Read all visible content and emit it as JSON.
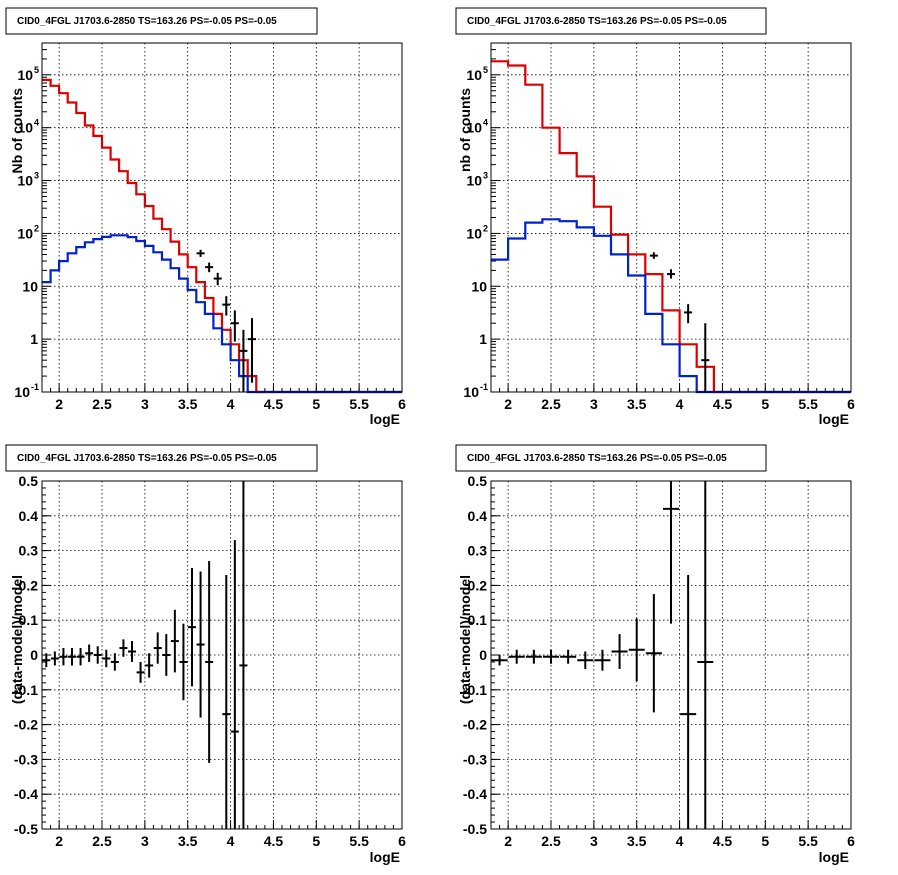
{
  "chart_data": [
    {
      "id": "counts-left",
      "type": "line",
      "title": "CID0_4FGL J1703.6-2850 TS=163.26 PS=-0.05 PS=-0.05",
      "xlabel": "logE",
      "ylabel": "Nb of counts",
      "xlim": [
        1.8,
        6.0
      ],
      "ylim": [
        0.1,
        400000
      ],
      "log_y": true,
      "grid": true,
      "x_ticks": [
        "2",
        "2.5",
        "3",
        "3.5",
        "4",
        "4.5",
        "5",
        "5.5",
        "6"
      ],
      "y_ticks": [
        {
          "value": 0.1,
          "base": "10",
          "exp": "-1"
        },
        {
          "value": 1,
          "label": "1"
        },
        {
          "value": 10,
          "label": "10"
        },
        {
          "value": 100,
          "base": "10",
          "exp": "2"
        },
        {
          "value": 1000,
          "base": "10",
          "exp": "3"
        },
        {
          "value": 10000,
          "base": "10",
          "exp": "4"
        },
        {
          "value": 100000,
          "base": "10",
          "exp": "5"
        }
      ],
      "bin_edges": [
        1.8,
        1.9,
        2.0,
        2.1,
        2.2,
        2.3,
        2.4,
        2.5,
        2.6,
        2.7,
        2.8,
        2.9,
        3.0,
        3.1,
        3.2,
        3.3,
        3.4,
        3.5,
        3.6,
        3.7,
        3.8,
        3.9,
        4.0,
        4.1,
        4.2,
        4.3,
        4.4,
        4.5,
        4.6,
        4.7,
        4.8,
        4.9,
        5.0,
        5.1,
        5.2,
        5.3,
        5.4,
        5.5,
        5.6,
        5.7,
        5.8,
        5.9,
        6.0
      ],
      "series": [
        {
          "color": "#dd0000",
          "values": [
            80000,
            62000,
            45000,
            30000,
            19000,
            11000,
            7000,
            4200,
            2500,
            1500,
            900,
            550,
            330,
            190,
            120,
            70,
            40,
            23,
            12,
            6,
            3,
            1.5,
            0.8,
            0.4,
            0.2,
            0.1,
            0.05,
            0.05,
            0.05,
            0.05,
            0.05,
            0.05,
            0.05,
            0.05,
            0.05,
            0.05,
            0.05,
            0.05,
            0.05,
            0.05,
            0.05,
            0.05
          ]
        },
        {
          "color": "#0022cc",
          "values": [
            12,
            20,
            30,
            42,
            55,
            68,
            78,
            86,
            92,
            92,
            85,
            72,
            58,
            44,
            32,
            22,
            14,
            8.5,
            5,
            3,
            1.6,
            0.8,
            0.4,
            0.2,
            0.1,
            0.1,
            0.1,
            0.1,
            0.1,
            0.1,
            0.1,
            0.1,
            0.1,
            0.1,
            0.1,
            0.1,
            0.1,
            0.1,
            0.1,
            0.1,
            0.1,
            0.1
          ]
        }
      ],
      "points": [
        {
          "x": 3.65,
          "y": 42,
          "ylo": 36,
          "yhi": 49
        },
        {
          "x": 3.75,
          "y": 23,
          "ylo": 18.5,
          "yhi": 28
        },
        {
          "x": 3.85,
          "y": 14,
          "ylo": 10.5,
          "yhi": 18
        },
        {
          "x": 3.95,
          "y": 4.5,
          "ylo": 2.8,
          "yhi": 6.5
        },
        {
          "x": 4.05,
          "y": 2,
          "ylo": 0.9,
          "yhi": 3.5
        },
        {
          "x": 4.15,
          "y": 0.6,
          "ylo": 0.1,
          "yhi": 1.5
        },
        {
          "x": 4.25,
          "y": 1.0,
          "ylo": 0.15,
          "yhi": 2.5
        }
      ]
    },
    {
      "id": "counts-right",
      "type": "line",
      "title": "CID0_4FGL J1703.6-2850 TS=163.26 PS=-0.05 PS=-0.05",
      "xlabel": "logE",
      "ylabel": "nb of counts",
      "xlim": [
        1.8,
        6.0
      ],
      "ylim": [
        0.1,
        400000
      ],
      "log_y": true,
      "grid": true,
      "x_ticks": [
        "2",
        "2.5",
        "3",
        "3.5",
        "4",
        "4.5",
        "5",
        "5.5",
        "6"
      ],
      "y_ticks": [
        {
          "value": 0.1,
          "base": "10",
          "exp": "-1"
        },
        {
          "value": 1,
          "label": "1"
        },
        {
          "value": 10,
          "label": "10"
        },
        {
          "value": 100,
          "base": "10",
          "exp": "2"
        },
        {
          "value": 1000,
          "base": "10",
          "exp": "3"
        },
        {
          "value": 10000,
          "base": "10",
          "exp": "4"
        },
        {
          "value": 100000,
          "base": "10",
          "exp": "5"
        }
      ],
      "bin_edges": [
        1.8,
        2.0,
        2.2,
        2.4,
        2.6,
        2.8,
        3.0,
        3.2,
        3.4,
        3.6,
        3.8,
        4.0,
        4.2,
        4.4,
        4.6,
        4.8,
        5.0,
        5.2,
        5.4,
        5.6,
        5.8,
        6.0
      ],
      "series": [
        {
          "color": "#dd0000",
          "values": [
            180000,
            150000,
            65000,
            10000,
            3300,
            1200,
            320,
            95,
            40,
            17,
            3.5,
            0.8,
            0.3,
            0.1,
            0.05,
            0.05,
            0.05,
            0.05,
            0.05,
            0.05,
            0.05
          ]
        },
        {
          "color": "#0022cc",
          "values": [
            32,
            80,
            160,
            185,
            170,
            130,
            90,
            40,
            16,
            3,
            0.8,
            0.2,
            0.1,
            0.1,
            0.1,
            0.1,
            0.1,
            0.1,
            0.1,
            0.1,
            0.1
          ]
        }
      ],
      "points": [
        {
          "x": 3.7,
          "y": 38,
          "ylo": 33,
          "yhi": 44
        },
        {
          "x": 3.9,
          "y": 17,
          "ylo": 14,
          "yhi": 21
        },
        {
          "x": 4.1,
          "y": 3.2,
          "ylo": 2,
          "yhi": 4.6
        },
        {
          "x": 4.3,
          "y": 0.4,
          "ylo": 0.1,
          "yhi": 2
        }
      ]
    },
    {
      "id": "ratio-left",
      "type": "scatter",
      "title": "CID0_4FGL J1703.6-2850 TS=163.26 PS=-0.05 PS=-0.05",
      "xlabel": "logE",
      "ylabel": "(data-model)/model",
      "xlim": [
        1.8,
        6.0
      ],
      "ylim": [
        -0.5,
        0.5
      ],
      "log_y": false,
      "grid": true,
      "x_ticks": [
        "2",
        "2.5",
        "3",
        "3.5",
        "4",
        "4.5",
        "5",
        "5.5",
        "6"
      ],
      "y_ticks": [
        "-0.5",
        "-0.4",
        "-0.3",
        "-0.2",
        "-0.1",
        "0",
        "0.1",
        "0.2",
        "0.3",
        "0.4",
        "0.5"
      ],
      "points": [
        {
          "x": 1.85,
          "y": -0.015,
          "err": 0.02
        },
        {
          "x": 1.95,
          "y": -0.01,
          "err": 0.02
        },
        {
          "x": 2.05,
          "y": -0.005,
          "err": 0.025
        },
        {
          "x": 2.15,
          "y": -0.005,
          "err": 0.025
        },
        {
          "x": 2.25,
          "y": -0.005,
          "err": 0.025
        },
        {
          "x": 2.35,
          "y": 0.005,
          "err": 0.025
        },
        {
          "x": 2.45,
          "y": 0.0,
          "err": 0.025
        },
        {
          "x": 2.55,
          "y": -0.01,
          "err": 0.025
        },
        {
          "x": 2.65,
          "y": -0.02,
          "err": 0.025
        },
        {
          "x": 2.75,
          "y": 0.02,
          "err": 0.025
        },
        {
          "x": 2.85,
          "y": 0.01,
          "err": 0.03
        },
        {
          "x": 2.95,
          "y": -0.05,
          "err": 0.03
        },
        {
          "x": 3.05,
          "y": -0.03,
          "err": 0.035
        },
        {
          "x": 3.15,
          "y": 0.02,
          "err": 0.045
        },
        {
          "x": 3.25,
          "y": 0.0,
          "err": 0.06
        },
        {
          "x": 3.35,
          "y": 0.04,
          "err": 0.09
        },
        {
          "x": 3.45,
          "y": -0.02,
          "err": 0.11
        },
        {
          "x": 3.55,
          "y": 0.08,
          "err": 0.17
        },
        {
          "x": 3.65,
          "y": 0.03,
          "err": 0.21
        },
        {
          "x": 3.75,
          "y": -0.02,
          "err": 0.29
        },
        {
          "x": 3.95,
          "y": -0.17,
          "err": 0.4
        },
        {
          "x": 4.05,
          "y": -0.22,
          "err": 0.55
        },
        {
          "x": 4.15,
          "y": -0.03,
          "err": 0.8
        }
      ]
    },
    {
      "id": "ratio-right",
      "type": "scatter",
      "title": "CID0_4FGL J1703.6-2850 TS=163.26 PS=-0.05 PS=-0.05",
      "xlabel": "logE",
      "ylabel": "(data-model)/model",
      "xlim": [
        1.8,
        6.0
      ],
      "ylim": [
        -0.5,
        0.5
      ],
      "log_y": false,
      "grid": true,
      "x_ticks": [
        "2",
        "2.5",
        "3",
        "3.5",
        "4",
        "4.5",
        "5",
        "5.5",
        "6"
      ],
      "y_ticks": [
        "-0.5",
        "-0.4",
        "-0.3",
        "-0.2",
        "-0.1",
        "0",
        "0.1",
        "0.2",
        "0.3",
        "0.4",
        "0.5"
      ],
      "points": [
        {
          "x": 1.9,
          "y": -0.015,
          "err": 0.015
        },
        {
          "x": 2.1,
          "y": -0.005,
          "err": 0.02
        },
        {
          "x": 2.3,
          "y": -0.005,
          "err": 0.02
        },
        {
          "x": 2.5,
          "y": -0.005,
          "err": 0.02
        },
        {
          "x": 2.7,
          "y": -0.005,
          "err": 0.02
        },
        {
          "x": 2.9,
          "y": -0.015,
          "err": 0.025
        },
        {
          "x": 3.1,
          "y": -0.015,
          "err": 0.03
        },
        {
          "x": 3.3,
          "y": 0.01,
          "err": 0.05
        },
        {
          "x": 3.5,
          "y": 0.015,
          "err": 0.09
        },
        {
          "x": 3.7,
          "y": 0.005,
          "err": 0.17
        },
        {
          "x": 3.9,
          "y": 0.42,
          "err": 0.33
        },
        {
          "x": 4.1,
          "y": -0.17,
          "err": 0.4
        },
        {
          "x": 4.3,
          "y": -0.02,
          "err": 0.6
        }
      ]
    }
  ]
}
